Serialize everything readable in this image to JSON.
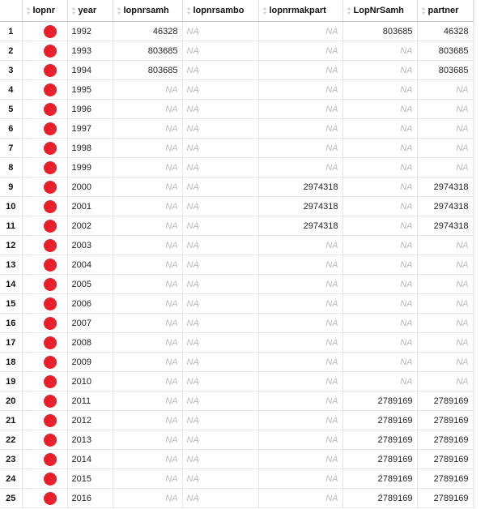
{
  "table": {
    "columns": [
      "lopnr",
      "year",
      "lopnrsamh",
      "lopnrsambo",
      "lopnrmakpart",
      "LopNrSamh",
      "partner"
    ],
    "na_text": "NA",
    "marker_color": "#e8202a",
    "rows": [
      {
        "n": "1",
        "year": "1992",
        "lopnrsamh": "46328",
        "lopnrsambo": "NA",
        "lopnrmakpart": "NA",
        "LopNrSamh": "803685",
        "partner": "46328"
      },
      {
        "n": "2",
        "year": "1993",
        "lopnrsamh": "803685",
        "lopnrsambo": "NA",
        "lopnrmakpart": "NA",
        "LopNrSamh": "NA",
        "partner": "803685"
      },
      {
        "n": "3",
        "year": "1994",
        "lopnrsamh": "803685",
        "lopnrsambo": "NA",
        "lopnrmakpart": "NA",
        "LopNrSamh": "NA",
        "partner": "803685"
      },
      {
        "n": "4",
        "year": "1995",
        "lopnrsamh": "NA",
        "lopnrsambo": "NA",
        "lopnrmakpart": "NA",
        "LopNrSamh": "NA",
        "partner": "NA"
      },
      {
        "n": "5",
        "year": "1996",
        "lopnrsamh": "NA",
        "lopnrsambo": "NA",
        "lopnrmakpart": "NA",
        "LopNrSamh": "NA",
        "partner": "NA"
      },
      {
        "n": "6",
        "year": "1997",
        "lopnrsamh": "NA",
        "lopnrsambo": "NA",
        "lopnrmakpart": "NA",
        "LopNrSamh": "NA",
        "partner": "NA"
      },
      {
        "n": "7",
        "year": "1998",
        "lopnrsamh": "NA",
        "lopnrsambo": "NA",
        "lopnrmakpart": "NA",
        "LopNrSamh": "NA",
        "partner": "NA"
      },
      {
        "n": "8",
        "year": "1999",
        "lopnrsamh": "NA",
        "lopnrsambo": "NA",
        "lopnrmakpart": "NA",
        "LopNrSamh": "NA",
        "partner": "NA"
      },
      {
        "n": "9",
        "year": "2000",
        "lopnrsamh": "NA",
        "lopnrsambo": "NA",
        "lopnrmakpart": "2974318",
        "LopNrSamh": "NA",
        "partner": "2974318"
      },
      {
        "n": "10",
        "year": "2001",
        "lopnrsamh": "NA",
        "lopnrsambo": "NA",
        "lopnrmakpart": "2974318",
        "LopNrSamh": "NA",
        "partner": "2974318"
      },
      {
        "n": "11",
        "year": "2002",
        "lopnrsamh": "NA",
        "lopnrsambo": "NA",
        "lopnrmakpart": "2974318",
        "LopNrSamh": "NA",
        "partner": "2974318"
      },
      {
        "n": "12",
        "year": "2003",
        "lopnrsamh": "NA",
        "lopnrsambo": "NA",
        "lopnrmakpart": "NA",
        "LopNrSamh": "NA",
        "partner": "NA"
      },
      {
        "n": "13",
        "year": "2004",
        "lopnrsamh": "NA",
        "lopnrsambo": "NA",
        "lopnrmakpart": "NA",
        "LopNrSamh": "NA",
        "partner": "NA"
      },
      {
        "n": "14",
        "year": "2005",
        "lopnrsamh": "NA",
        "lopnrsambo": "NA",
        "lopnrmakpart": "NA",
        "LopNrSamh": "NA",
        "partner": "NA"
      },
      {
        "n": "15",
        "year": "2006",
        "lopnrsamh": "NA",
        "lopnrsambo": "NA",
        "lopnrmakpart": "NA",
        "LopNrSamh": "NA",
        "partner": "NA"
      },
      {
        "n": "16",
        "year": "2007",
        "lopnrsamh": "NA",
        "lopnrsambo": "NA",
        "lopnrmakpart": "NA",
        "LopNrSamh": "NA",
        "partner": "NA"
      },
      {
        "n": "17",
        "year": "2008",
        "lopnrsamh": "NA",
        "lopnrsambo": "NA",
        "lopnrmakpart": "NA",
        "LopNrSamh": "NA",
        "partner": "NA"
      },
      {
        "n": "18",
        "year": "2009",
        "lopnrsamh": "NA",
        "lopnrsambo": "NA",
        "lopnrmakpart": "NA",
        "LopNrSamh": "NA",
        "partner": "NA"
      },
      {
        "n": "19",
        "year": "2010",
        "lopnrsamh": "NA",
        "lopnrsambo": "NA",
        "lopnrmakpart": "NA",
        "LopNrSamh": "NA",
        "partner": "NA"
      },
      {
        "n": "20",
        "year": "2011",
        "lopnrsamh": "NA",
        "lopnrsambo": "NA",
        "lopnrmakpart": "NA",
        "LopNrSamh": "2789169",
        "partner": "2789169"
      },
      {
        "n": "21",
        "year": "2012",
        "lopnrsamh": "NA",
        "lopnrsambo": "NA",
        "lopnrmakpart": "NA",
        "LopNrSamh": "2789169",
        "partner": "2789169"
      },
      {
        "n": "22",
        "year": "2013",
        "lopnrsamh": "NA",
        "lopnrsambo": "NA",
        "lopnrmakpart": "NA",
        "LopNrSamh": "2789169",
        "partner": "2789169"
      },
      {
        "n": "23",
        "year": "2014",
        "lopnrsamh": "NA",
        "lopnrsambo": "NA",
        "lopnrmakpart": "NA",
        "LopNrSamh": "2789169",
        "partner": "2789169"
      },
      {
        "n": "24",
        "year": "2015",
        "lopnrsamh": "NA",
        "lopnrsambo": "NA",
        "lopnrmakpart": "NA",
        "LopNrSamh": "2789169",
        "partner": "2789169"
      },
      {
        "n": "25",
        "year": "2016",
        "lopnrsamh": "NA",
        "lopnrsambo": "NA",
        "lopnrmakpart": "NA",
        "LopNrSamh": "2789169",
        "partner": "2789169"
      }
    ]
  }
}
